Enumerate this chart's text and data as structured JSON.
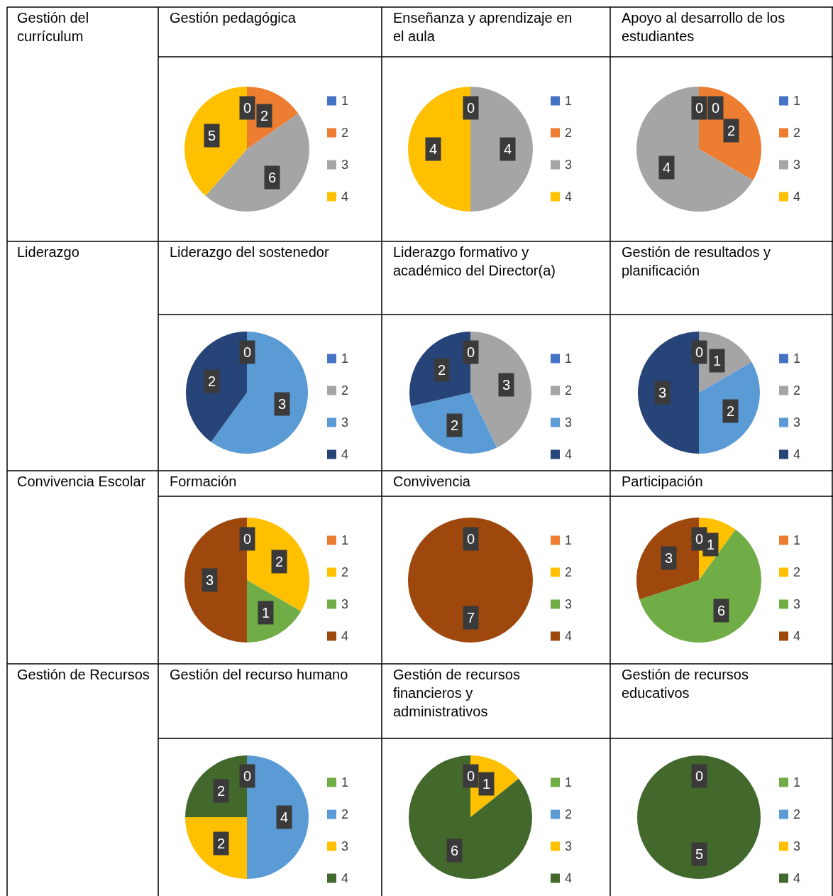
{
  "chart_data": [
    {
      "type": "pie",
      "title": "Gestión pedagógica",
      "annotations": [
        "Gestión del currículum"
      ],
      "categories": [
        "1",
        "2",
        "3",
        "4"
      ],
      "values": [
        0,
        2,
        6,
        5
      ],
      "colors": [
        "#4472c4",
        "#ed7d31",
        "#a5a5a5",
        "#ffc000"
      ],
      "data_labels": true,
      "legend": "right"
    },
    {
      "type": "pie",
      "title": "Enseñanza y aprendizaje en el aula",
      "categories": [
        "1",
        "2",
        "3",
        "4"
      ],
      "values": [
        0,
        0,
        4,
        4
      ],
      "value_labels": [
        "0",
        null,
        "4",
        "4"
      ],
      "colors": [
        "#4472c4",
        "#ed7d31",
        "#a5a5a5",
        "#ffc000"
      ],
      "legend": "right"
    },
    {
      "type": "pie",
      "title": "Apoyo al desarrollo de los estudiantes",
      "categories": [
        "1",
        "2",
        "3",
        "4"
      ],
      "values": [
        0,
        2,
        4,
        0
      ],
      "colors": [
        "#4472c4",
        "#ed7d31",
        "#a5a5a5",
        "#ffc000"
      ],
      "data_labels": true,
      "legend": "right"
    },
    {
      "type": "pie",
      "title": "Liderazgo del sostenedor",
      "annotations": [
        "Liderazgo"
      ],
      "categories": [
        "1",
        "2",
        "3",
        "4"
      ],
      "values": [
        0,
        0,
        3,
        2
      ],
      "value_labels": [
        "0",
        null,
        "3",
        "2"
      ],
      "colors": [
        "#4472c4",
        "#a5a5a5",
        "#5b9bd5",
        "#264478"
      ],
      "legend": "right"
    },
    {
      "type": "pie",
      "title": "Liderazgo formativo y académico del Director(a)",
      "categories": [
        "1",
        "2",
        "3",
        "4"
      ],
      "values": [
        0,
        3,
        2,
        2
      ],
      "colors": [
        "#4472c4",
        "#a5a5a5",
        "#5b9bd5",
        "#264478"
      ],
      "data_labels": true,
      "legend": "right"
    },
    {
      "type": "pie",
      "title": "Gestión de resultados y planificación",
      "categories": [
        "1",
        "2",
        "3",
        "4"
      ],
      "values": [
        0,
        1,
        2,
        3
      ],
      "colors": [
        "#4472c4",
        "#a5a5a5",
        "#5b9bd5",
        "#264478"
      ],
      "data_labels": true,
      "legend": "right"
    },
    {
      "type": "pie",
      "title": "Formación",
      "annotations": [
        "Convivencia Escolar"
      ],
      "categories": [
        "1",
        "2",
        "3",
        "4"
      ],
      "values": [
        0,
        2,
        1,
        3
      ],
      "colors": [
        "#ed7d31",
        "#ffc000",
        "#70ad47",
        "#9e480e"
      ],
      "data_labels": true,
      "legend": "right"
    },
    {
      "type": "pie",
      "title": "Convivencia",
      "categories": [
        "1",
        "2",
        "3",
        "4"
      ],
      "values": [
        0,
        0,
        0,
        7
      ],
      "value_labels": [
        "0",
        null,
        null,
        "7"
      ],
      "colors": [
        "#ed7d31",
        "#ffc000",
        "#70ad47",
        "#9e480e"
      ],
      "legend": "right"
    },
    {
      "type": "pie",
      "title": "Participación",
      "categories": [
        "1",
        "2",
        "3",
        "4"
      ],
      "values": [
        0,
        1,
        6,
        3
      ],
      "colors": [
        "#ed7d31",
        "#ffc000",
        "#70ad47",
        "#9e480e"
      ],
      "data_labels": true,
      "legend": "right"
    },
    {
      "type": "pie",
      "title": "Gestión del recurso humano",
      "annotations": [
        "Gestión de Recursos"
      ],
      "categories": [
        "1",
        "2",
        "3",
        "4"
      ],
      "values": [
        0,
        4,
        2,
        2
      ],
      "colors": [
        "#70ad47",
        "#5b9bd5",
        "#ffc000",
        "#43682b"
      ],
      "data_labels": true,
      "legend": "right"
    },
    {
      "type": "pie",
      "title": "Gestión de recursos financieros y administrativos",
      "categories": [
        "1",
        "2",
        "3",
        "4"
      ],
      "values": [
        0,
        0,
        1,
        6
      ],
      "value_labels": [
        "0",
        null,
        "1",
        "6"
      ],
      "colors": [
        "#70ad47",
        "#5b9bd5",
        "#ffc000",
        "#43682b"
      ],
      "legend": "right"
    },
    {
      "type": "pie",
      "title": "Gestión de recursos educativos",
      "categories": [
        "1",
        "2",
        "3",
        "4"
      ],
      "values": [
        0,
        0,
        0,
        5
      ],
      "value_labels": [
        "0",
        null,
        null,
        "5"
      ],
      "colors": [
        "#70ad47",
        "#5b9bd5",
        "#ffc000",
        "#43682b"
      ],
      "legend": "right"
    }
  ]
}
